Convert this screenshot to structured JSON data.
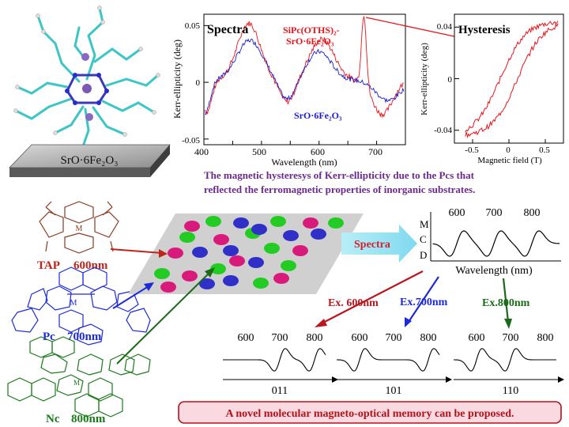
{
  "top_left": {
    "substrate_label": "SrO·6Fe₂O₃"
  },
  "spectra_chart": {
    "title": "Spectra",
    "xlabel": "Wavelength (nm)",
    "ylabel": "Kerr-ellipticity (deg)",
    "x_ticks": [
      "400",
      "500",
      "600",
      "700"
    ],
    "y_ticks": [
      "0.05",
      "0",
      "-0.05"
    ],
    "series_red_label_line1": "SiPc(OTHS)₂-",
    "series_red_label_line2": "SrO·6Fe₂O₃",
    "series_blue_label": "SrO·6Fe₂O₃",
    "colors": {
      "red": "#e8141a",
      "blue": "#1c1ccf"
    }
  },
  "hysteresis_chart": {
    "title": "Hysteresis",
    "xlabel": "Magnetic field (T)",
    "ylabel": "Kerr-ellipticity (deg)",
    "x_ticks": [
      "-0.5",
      "0",
      "0.5"
    ],
    "y_ticks": [
      "0.04",
      "0",
      "-0.04"
    ]
  },
  "caption": {
    "line1": "The magnetic hysteresys of Kerr-ellipticity due to the Pcs that",
    "line2": "reflected the ferromagnetic properties of inorganic substrates."
  },
  "molecules": {
    "tap": {
      "name": "TAP",
      "wavelength": "600nm",
      "center_label": "M",
      "color": "#8b3a1f"
    },
    "pc": {
      "name": "Pc",
      "wavelength": "700nm",
      "center_label": "M",
      "color": "#1c2bd6"
    },
    "nc": {
      "name": "Nc",
      "wavelength": "800nm",
      "center_label": "M",
      "color": "#1a7a1a"
    }
  },
  "mcd": {
    "spectra_arrow_label": "Spectra",
    "axis_letters": [
      "M",
      "C",
      "D"
    ],
    "peak_labels": [
      "600",
      "700",
      "800"
    ],
    "xlabel": "Wavelength   (nm)"
  },
  "excitation": {
    "ex600": "Ex. 600nm",
    "ex700": "Ex.700nm",
    "ex800": "Ex.800nm"
  },
  "readouts": [
    {
      "labels": [
        "600",
        "700",
        "800"
      ],
      "code": "011"
    },
    {
      "labels": [
        "600",
        "700",
        "800"
      ],
      "code": "101"
    },
    {
      "labels": [
        "600",
        "700",
        "800"
      ],
      "code": "110"
    }
  ],
  "conclusion": "A novel molecular magneto-optical memory can be proposed."
}
